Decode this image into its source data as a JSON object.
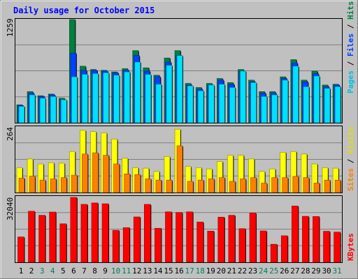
{
  "title": "Daily usage for October 2015",
  "days": [
    "1",
    "2",
    "3",
    "4",
    "5",
    "6",
    "7",
    "8",
    "9",
    "10",
    "11",
    "12",
    "13",
    "14",
    "15",
    "16",
    "17",
    "18",
    "19",
    "20",
    "21",
    "22",
    "23",
    "24",
    "25",
    "26",
    "27",
    "28",
    "29",
    "30",
    "31"
  ],
  "weekend_days": [
    "3",
    "4",
    "10",
    "11",
    "17",
    "18",
    "24",
    "25",
    "31"
  ],
  "colors": {
    "background": "#c0c0c0",
    "outer": "#ffffff",
    "title": "#0000ff",
    "hits": "#008040",
    "files": "#0040ff",
    "pages": "#00e0ff",
    "visits": "#ffff00",
    "sites": "#ff8000",
    "kbytes": "#ff0000",
    "weekday_label": "#000000",
    "weekend_label": "#00805c",
    "gridline": "#808080"
  },
  "chart_data": [
    {
      "type": "bar",
      "panel": "hits_files_pages",
      "ymax_label": "1259",
      "ylim": [
        0,
        1259
      ],
      "legend": [
        "Pages",
        "Files",
        "Hits"
      ],
      "series": [
        {
          "name": "Hits",
          "values": [
            220,
            380,
            330,
            350,
            300,
            1259,
            690,
            650,
            640,
            620,
            660,
            880,
            670,
            580,
            790,
            880,
            480,
            430,
            480,
            540,
            490,
            650,
            520,
            380,
            380,
            560,
            770,
            520,
            630,
            460,
            470
          ]
        },
        {
          "name": "Files",
          "values": [
            210,
            360,
            320,
            340,
            280,
            850,
            640,
            640,
            630,
            610,
            640,
            820,
            630,
            560,
            740,
            820,
            460,
            410,
            460,
            520,
            470,
            630,
            500,
            360,
            360,
            540,
            730,
            500,
            600,
            440,
            460
          ]
        },
        {
          "name": "Pages",
          "values": [
            200,
            340,
            300,
            320,
            280,
            560,
            590,
            600,
            610,
            580,
            620,
            740,
            590,
            470,
            700,
            820,
            450,
            390,
            460,
            470,
            430,
            630,
            490,
            320,
            340,
            520,
            690,
            440,
            570,
            420,
            440
          ]
        }
      ]
    },
    {
      "type": "bar",
      "panel": "visits_sites",
      "ymax_label": "264",
      "ylim": [
        0,
        264
      ],
      "legend": [
        "Sites",
        "Visits"
      ],
      "series": [
        {
          "name": "Visits",
          "values": [
            100,
            135,
            115,
            120,
            118,
            165,
            250,
            245,
            240,
            215,
            138,
            100,
            98,
            85,
            145,
            255,
            105,
            100,
            95,
            125,
            150,
            150,
            135,
            85,
            95,
            162,
            165,
            155,
            115,
            100,
            98
          ]
        },
        {
          "name": "Sites",
          "values": [
            58,
            66,
            50,
            55,
            60,
            70,
            155,
            160,
            150,
            115,
            75,
            72,
            55,
            50,
            50,
            188,
            45,
            50,
            55,
            60,
            45,
            55,
            60,
            38,
            60,
            60,
            65,
            60,
            38,
            50,
            50
          ]
        }
      ]
    },
    {
      "type": "bar",
      "panel": "kbytes",
      "ymax_label": "32040",
      "ylim": [
        0,
        32040
      ],
      "legend": [
        "KBytes"
      ],
      "series": [
        {
          "name": "KBytes",
          "values": [
            12500,
            25200,
            23200,
            24800,
            19000,
            32040,
            28600,
            29300,
            28900,
            15800,
            17100,
            22400,
            28600,
            16800,
            24900,
            24600,
            24900,
            19900,
            15400,
            22300,
            23200,
            16600,
            24300,
            15500,
            8900,
            13100,
            27800,
            22700,
            22600,
            15300,
            14900
          ]
        }
      ]
    }
  ]
}
